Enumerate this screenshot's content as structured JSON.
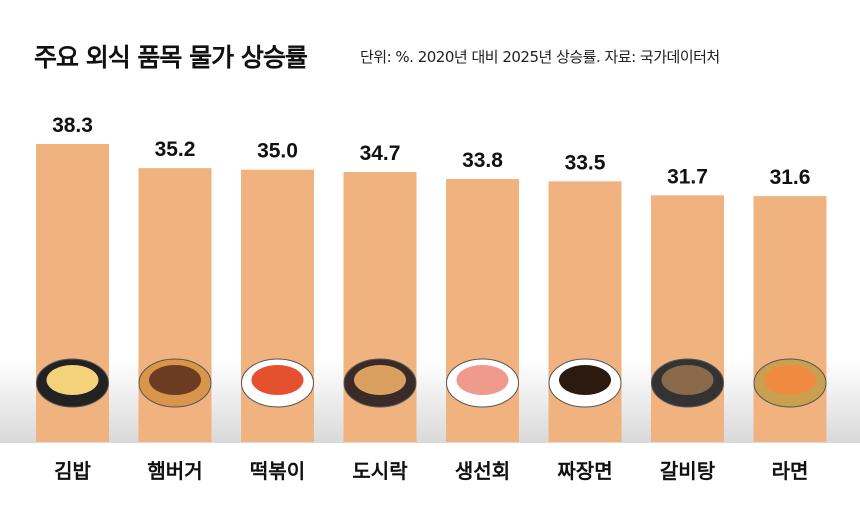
{
  "chart_data": {
    "type": "bar",
    "title": "주요 외식 품목 물가 상승률",
    "subtitle": "단위: %. 2020년 대비 2025년 상승률. 자료: 국가데이터처",
    "categories": [
      "김밥",
      "햄버거",
      "떡볶이",
      "도시락",
      "생선회",
      "짜장면",
      "갈비탕",
      "라면"
    ],
    "values": [
      38.3,
      35.2,
      35.0,
      34.7,
      33.8,
      33.5,
      31.7,
      31.6
    ],
    "value_labels": [
      "38.3",
      "35.2",
      "35.0",
      "34.7",
      "33.8",
      "33.5",
      "31.7",
      "31.6"
    ],
    "icons": [
      "gimbap-icon",
      "hamburger-icon",
      "tteokbokki-icon",
      "lunchbox-icon",
      "sashimi-icon",
      "jajangmyeon-icon",
      "galbitang-icon",
      "ramen-icon"
    ],
    "xlabel": "",
    "ylabel": "",
    "ylim": [
      0,
      38.3
    ],
    "grid": false,
    "bar_color": "#F0B27E"
  }
}
